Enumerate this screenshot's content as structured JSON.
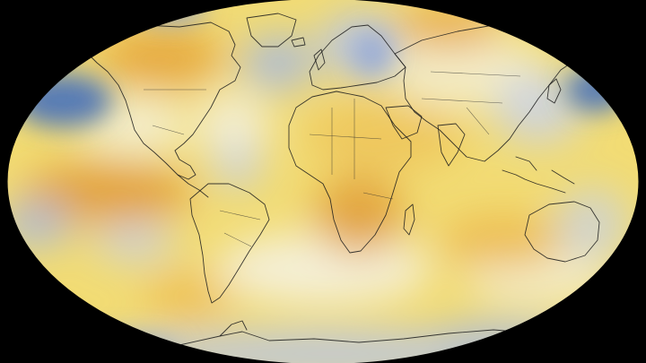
{
  "map": {
    "projection": "robinson",
    "background_color": "#000000",
    "palette": {
      "strong_cool": "#4f76b8",
      "cool": "#a9b9dd",
      "neutral": "#f4f2e8",
      "warm": "#f3dc73",
      "hot": "#e9ad3a",
      "very_hot": "#d98a2a"
    },
    "regions": [
      {
        "name": "north-pacific-cool-anomaly",
        "level": "strong_cool"
      },
      {
        "name": "north-atlantic-cool-anomaly",
        "level": "cool"
      },
      {
        "name": "western-pacific-cool-anomaly",
        "level": "strong_cool"
      },
      {
        "name": "alaska-warm-anomaly",
        "level": "hot"
      },
      {
        "name": "eastern-pacific-warm-anomaly",
        "level": "hot"
      },
      {
        "name": "southern-africa-warm-anomaly",
        "level": "hot"
      },
      {
        "name": "antarctic-cool-anomaly",
        "level": "cool"
      }
    ]
  }
}
